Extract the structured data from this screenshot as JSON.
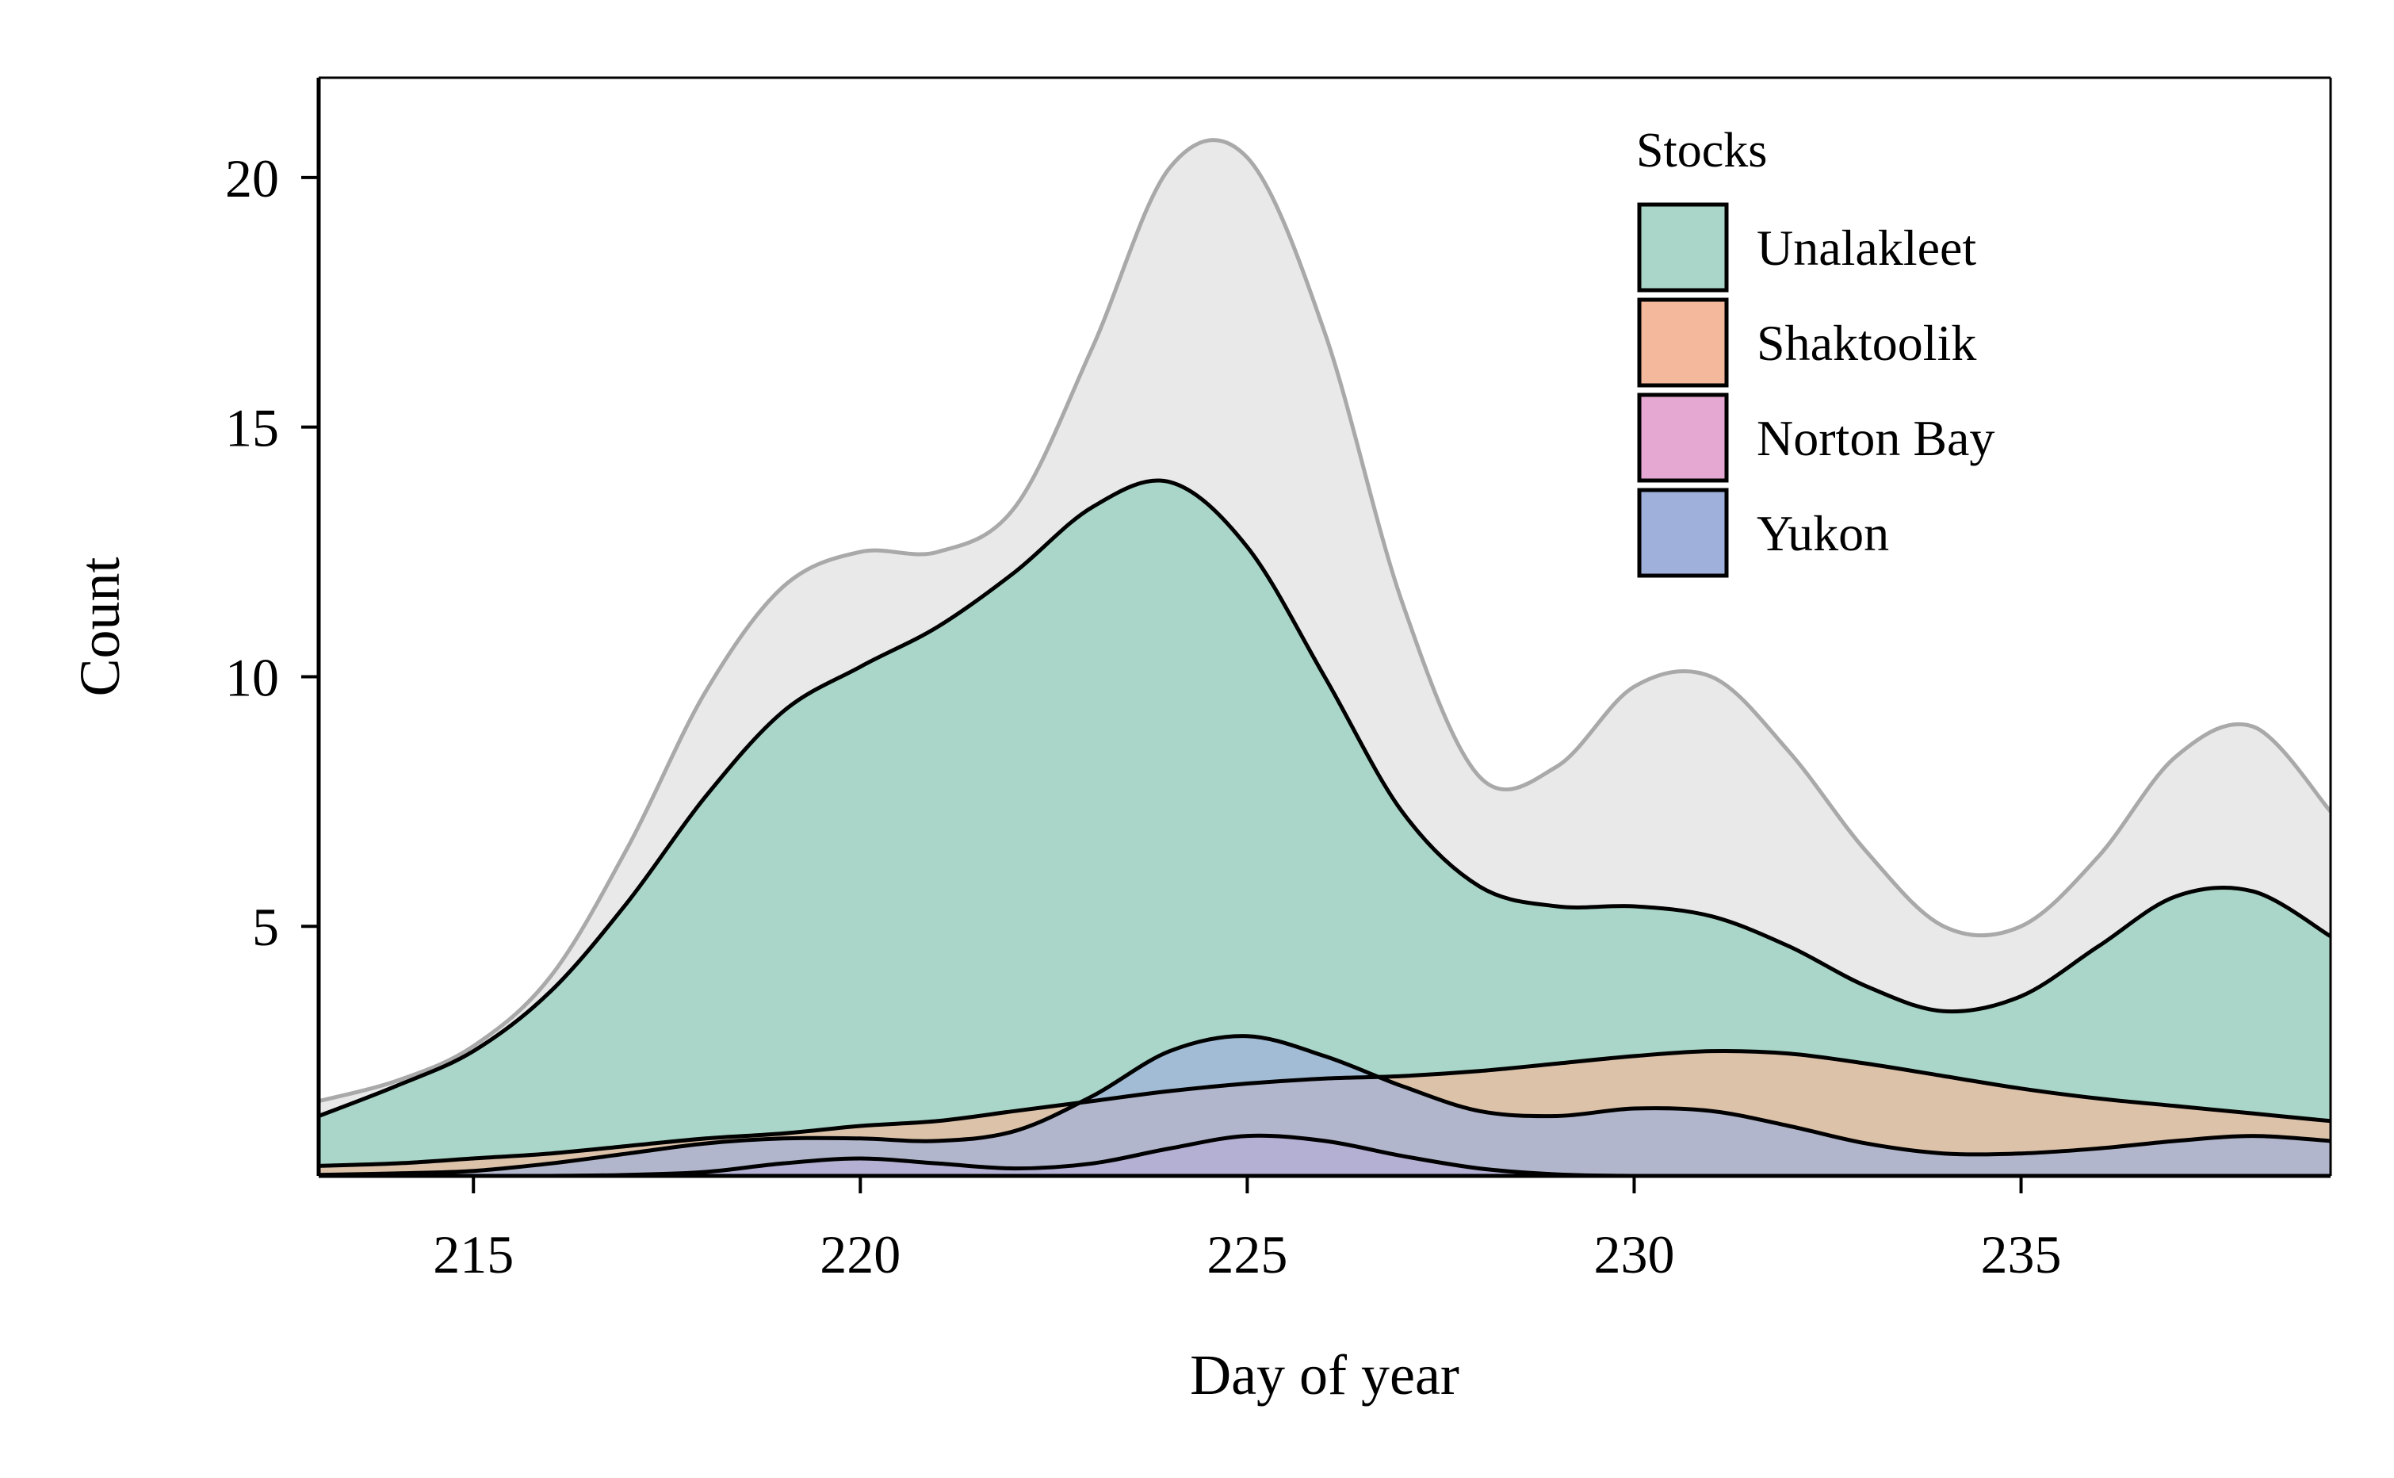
{
  "chart_data": {
    "type": "area",
    "title": "",
    "xlabel": "Day of year",
    "ylabel": "Count",
    "xlim": [
      213,
      239
    ],
    "ylim": [
      0,
      22
    ],
    "x_ticks": [
      215,
      220,
      225,
      230,
      235
    ],
    "y_ticks": [
      5,
      10,
      15,
      20
    ],
    "grid": false,
    "legend": {
      "title": "Stocks",
      "placement": "top-right",
      "entries": [
        "Unalakleet",
        "Shaktoolik",
        "Norton Bay",
        "Yukon"
      ]
    },
    "total": {
      "color": "#e9e9e9",
      "line_color": "#a9a9a9",
      "points": [
        [
          213,
          1.5
        ],
        [
          214,
          1.9
        ],
        [
          215,
          2.6
        ],
        [
          216,
          4.0
        ],
        [
          217,
          6.6
        ],
        [
          218,
          9.7
        ],
        [
          219,
          11.8
        ],
        [
          220,
          12.5
        ],
        [
          221,
          12.5
        ],
        [
          222,
          13.4
        ],
        [
          223,
          16.6
        ],
        [
          224,
          20.2
        ],
        [
          225,
          20.4
        ],
        [
          226,
          16.9
        ],
        [
          227,
          11.5
        ],
        [
          228,
          8.0
        ],
        [
          229,
          8.2
        ],
        [
          230,
          9.8
        ],
        [
          231,
          10.0
        ],
        [
          232,
          8.5
        ],
        [
          233,
          6.5
        ],
        [
          234,
          5.0
        ],
        [
          235,
          5.0
        ],
        [
          236,
          6.4
        ],
        [
          237,
          8.4
        ],
        [
          238,
          9.0
        ],
        [
          239,
          7.3
        ]
      ]
    },
    "series": [
      {
        "name": "Unalakleet",
        "color": "#a9d6c8",
        "points": [
          [
            213,
            1.2
          ],
          [
            214,
            1.8
          ],
          [
            215,
            2.5
          ],
          [
            216,
            3.7
          ],
          [
            217,
            5.5
          ],
          [
            218,
            7.6
          ],
          [
            219,
            9.3
          ],
          [
            220,
            10.2
          ],
          [
            221,
            11.0
          ],
          [
            222,
            12.1
          ],
          [
            223,
            13.4
          ],
          [
            224,
            13.9
          ],
          [
            225,
            12.6
          ],
          [
            226,
            10.0
          ],
          [
            227,
            7.3
          ],
          [
            228,
            5.8
          ],
          [
            229,
            5.4
          ],
          [
            230,
            5.4
          ],
          [
            231,
            5.2
          ],
          [
            232,
            4.6
          ],
          [
            233,
            3.8
          ],
          [
            234,
            3.3
          ],
          [
            235,
            3.6
          ],
          [
            236,
            4.6
          ],
          [
            237,
            5.6
          ],
          [
            238,
            5.7
          ],
          [
            239,
            4.8
          ]
        ]
      },
      {
        "name": "Shaktoolik",
        "color": "#f4b99c",
        "points": [
          [
            213,
            0.2
          ],
          [
            214,
            0.25
          ],
          [
            215,
            0.35
          ],
          [
            216,
            0.45
          ],
          [
            217,
            0.6
          ],
          [
            218,
            0.75
          ],
          [
            219,
            0.85
          ],
          [
            220,
            1.0
          ],
          [
            221,
            1.1
          ],
          [
            222,
            1.3
          ],
          [
            223,
            1.5
          ],
          [
            224,
            1.7
          ],
          [
            225,
            1.85
          ],
          [
            226,
            1.95
          ],
          [
            227,
            2.0
          ],
          [
            228,
            2.1
          ],
          [
            229,
            2.25
          ],
          [
            230,
            2.4
          ],
          [
            231,
            2.5
          ],
          [
            232,
            2.45
          ],
          [
            233,
            2.25
          ],
          [
            234,
            2.0
          ],
          [
            235,
            1.75
          ],
          [
            236,
            1.55
          ],
          [
            237,
            1.4
          ],
          [
            238,
            1.25
          ],
          [
            239,
            1.1
          ]
        ]
      },
      {
        "name": "Norton Bay",
        "color": "#e5a8d2",
        "points": [
          [
            213,
            0.0
          ],
          [
            214,
            0.0
          ],
          [
            215,
            0.0
          ],
          [
            216,
            0.0
          ],
          [
            217,
            0.02
          ],
          [
            218,
            0.08
          ],
          [
            219,
            0.25
          ],
          [
            220,
            0.35
          ],
          [
            221,
            0.25
          ],
          [
            222,
            0.15
          ],
          [
            223,
            0.25
          ],
          [
            224,
            0.55
          ],
          [
            225,
            0.8
          ],
          [
            226,
            0.7
          ],
          [
            227,
            0.4
          ],
          [
            228,
            0.15
          ],
          [
            229,
            0.03
          ],
          [
            230,
            0.0
          ],
          [
            231,
            0.0
          ],
          [
            232,
            0.0
          ],
          [
            233,
            0.0
          ],
          [
            234,
            0.0
          ],
          [
            235,
            0.0
          ],
          [
            236,
            0.0
          ],
          [
            237,
            0.0
          ],
          [
            238,
            0.0
          ],
          [
            239,
            0.0
          ]
        ]
      },
      {
        "name": "Yukon",
        "color": "#9fb0da",
        "points": [
          [
            213,
            0.02
          ],
          [
            214,
            0.05
          ],
          [
            215,
            0.1
          ],
          [
            216,
            0.25
          ],
          [
            217,
            0.45
          ],
          [
            218,
            0.65
          ],
          [
            219,
            0.75
          ],
          [
            220,
            0.75
          ],
          [
            221,
            0.7
          ],
          [
            222,
            0.9
          ],
          [
            223,
            1.6
          ],
          [
            224,
            2.5
          ],
          [
            225,
            2.8
          ],
          [
            226,
            2.4
          ],
          [
            227,
            1.8
          ],
          [
            228,
            1.3
          ],
          [
            229,
            1.2
          ],
          [
            230,
            1.35
          ],
          [
            231,
            1.3
          ],
          [
            232,
            1.0
          ],
          [
            233,
            0.65
          ],
          [
            234,
            0.45
          ],
          [
            235,
            0.45
          ],
          [
            236,
            0.55
          ],
          [
            237,
            0.7
          ],
          [
            238,
            0.8
          ],
          [
            239,
            0.7
          ]
        ]
      }
    ]
  }
}
